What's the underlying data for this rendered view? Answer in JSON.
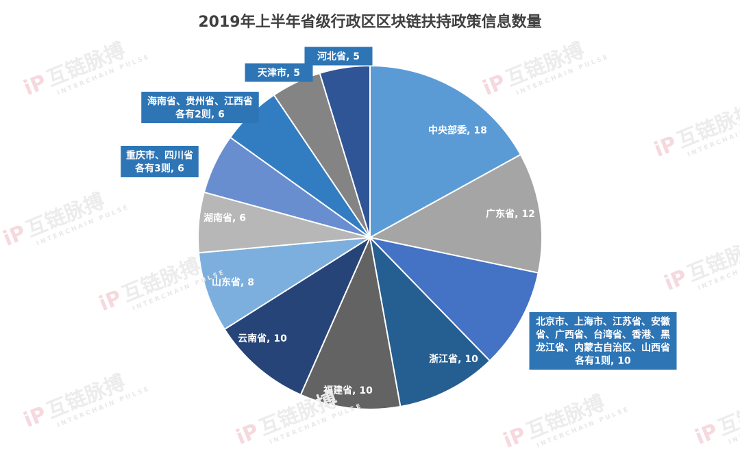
{
  "chart_data": {
    "type": "pie",
    "title": "2019年上半年省级行政区区块链扶持政策信息数量",
    "slices": [
      {
        "label": "中央部委",
        "value": 18,
        "color": "#5b9bd5",
        "label_lines": [
          "中央部委, 18"
        ]
      },
      {
        "label": "广东省",
        "value": 12,
        "color": "#a5a5a5",
        "label_lines": [
          "广东省, 12"
        ]
      },
      {
        "label": "北京市、上海市、江苏省、安徽省、广西省、台湾省、香港、黑龙江省、内蒙古自治区、山西省各有1则",
        "value": 10,
        "color": "#4472c4",
        "label_lines": [
          "北京市、上海市、江苏省、安徽",
          "省、广西省、台湾省、香港、黑",
          "龙江省、内蒙古自治区、山西省",
          "各有1则, 10"
        ]
      },
      {
        "label": "浙江省",
        "value": 10,
        "color": "#255e91",
        "label_lines": [
          "浙江省, 10"
        ]
      },
      {
        "label": "福建省",
        "value": 10,
        "color": "#636363",
        "label_lines": [
          "福建省, 10"
        ]
      },
      {
        "label": "云南省",
        "value": 10,
        "color": "#264478",
        "label_lines": [
          "云南省, 10"
        ]
      },
      {
        "label": "山东省",
        "value": 8,
        "color": "#7cafdd",
        "label_lines": [
          "山东省, 8"
        ]
      },
      {
        "label": "湖南省",
        "value": 6,
        "color": "#b7b7b7",
        "label_lines": [
          "湖南省, 6"
        ]
      },
      {
        "label": "重庆市、四川省各有3则",
        "value": 6,
        "color": "#698ed0",
        "label_lines": [
          "重庆市、四川省",
          "各有3则, 6"
        ]
      },
      {
        "label": "海南省、贵州省、江西省各有2则",
        "value": 6,
        "color": "#327dc2",
        "label_lines": [
          "海南省、贵州省、江西省",
          "各有2则, 6"
        ]
      },
      {
        "label": "天津市",
        "value": 5,
        "color": "#848484",
        "label_lines": [
          "天津市, 5"
        ]
      },
      {
        "label": "河北省",
        "value": 5,
        "color": "#2f5597",
        "label_lines": [
          "河北省, 5"
        ]
      }
    ]
  },
  "watermark": {
    "brand": "互链脉搏",
    "sub": "INTERCHAIN PULSE",
    "logo": "iP"
  }
}
